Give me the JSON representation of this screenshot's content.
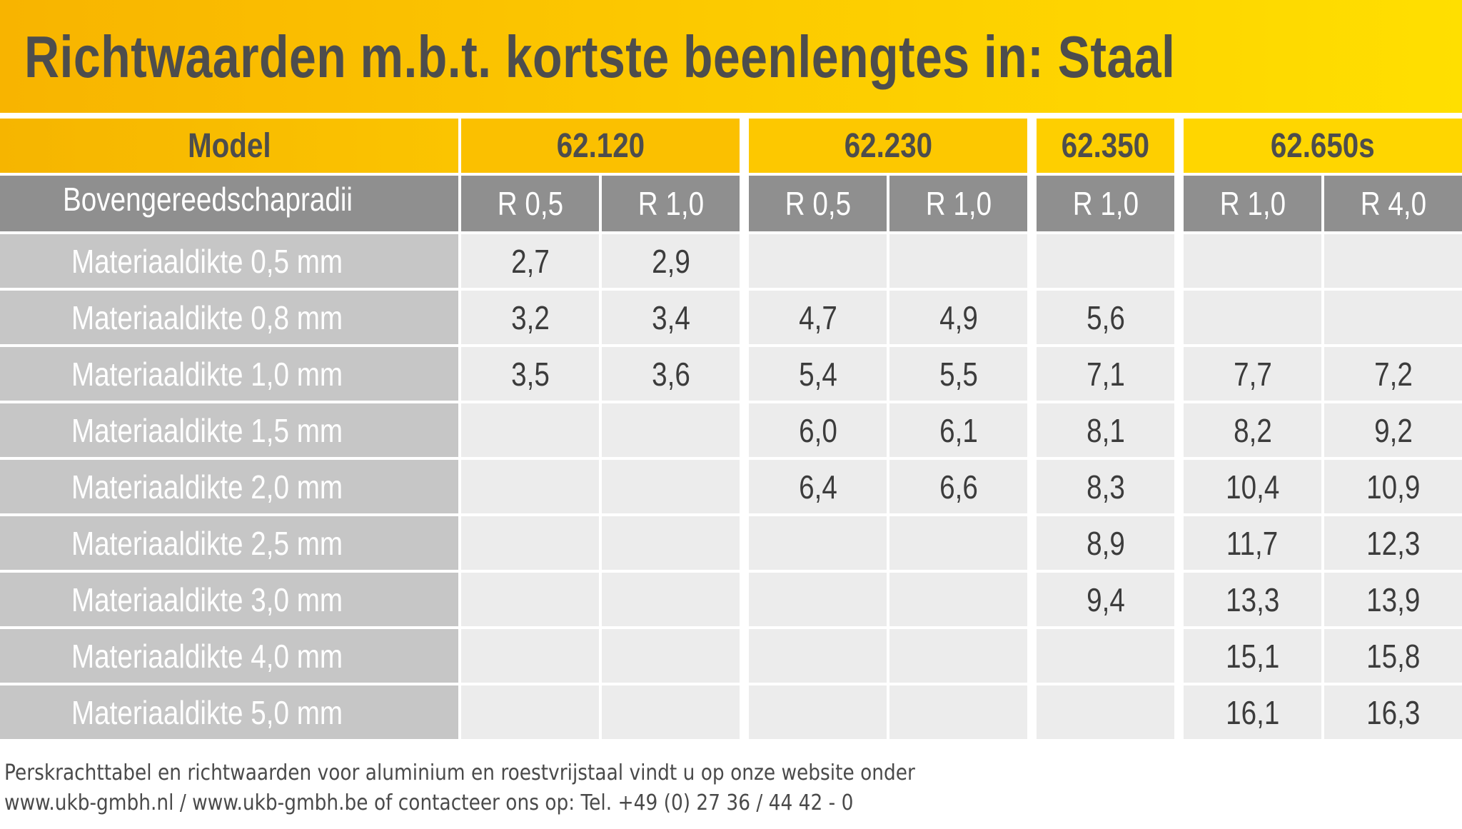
{
  "title": "Richtwaarden m.b.t. kortste beenlengtes in: Staal",
  "table": {
    "model_label": "Model",
    "radius_label": "Bovengereedschapradii",
    "models": [
      "62.120",
      "62.230",
      "62.350",
      "62.650s"
    ],
    "radii": [
      "R 0,5",
      "R 1,0",
      "R 0,5",
      "R 1,0",
      "R 1,0",
      "R 1,0",
      "R 4,0"
    ],
    "rows": [
      {
        "label": "Materiaaldikte 0,5 mm",
        "values": [
          "2,7",
          "2,9",
          "",
          "",
          "",
          "",
          ""
        ]
      },
      {
        "label": "Materiaaldikte 0,8 mm",
        "values": [
          "3,2",
          "3,4",
          "4,7",
          "4,9",
          "5,6",
          "",
          ""
        ]
      },
      {
        "label": "Materiaaldikte 1,0 mm",
        "values": [
          "3,5",
          "3,6",
          "5,4",
          "5,5",
          "7,1",
          "7,7",
          "7,2"
        ]
      },
      {
        "label": "Materiaaldikte 1,5 mm",
        "values": [
          "",
          "",
          "6,0",
          "6,1",
          "8,1",
          "8,2",
          "9,2"
        ]
      },
      {
        "label": "Materiaaldikte 2,0 mm",
        "values": [
          "",
          "",
          "6,4",
          "6,6",
          "8,3",
          "10,4",
          "10,9"
        ]
      },
      {
        "label": "Materiaaldikte 2,5 mm",
        "values": [
          "",
          "",
          "",
          "",
          "8,9",
          "11,7",
          "12,3"
        ]
      },
      {
        "label": "Materiaaldikte 3,0 mm",
        "values": [
          "",
          "",
          "",
          "",
          "9,4",
          "13,3",
          "13,9"
        ]
      },
      {
        "label": "Materiaaldikte 4,0 mm",
        "values": [
          "",
          "",
          "",
          "",
          "",
          "15,1",
          "15,8"
        ]
      },
      {
        "label": "Materiaaldikte 5,0 mm",
        "values": [
          "",
          "",
          "",
          "",
          "",
          "16,1",
          "16,3"
        ]
      }
    ]
  },
  "footer": {
    "line1": "Perskrachttabel en richtwaarden voor aluminium en roestvrijstaal vindt u op onze website onder",
    "line2": "www.ukb-gmbh.nl / www.ukb-gmbh.be of contacteer ons op: Tel. +49 (0) 27 36 / 44 42 - 0"
  },
  "colors": {
    "title_bar_start": "#f8b400",
    "title_bar_end": "#ffdf00",
    "title_text": "#4d4d4d",
    "radius_header_bg": "#8f8f8f",
    "row_label_bg": "#c6c6c6",
    "value_bg": "#ececec"
  }
}
